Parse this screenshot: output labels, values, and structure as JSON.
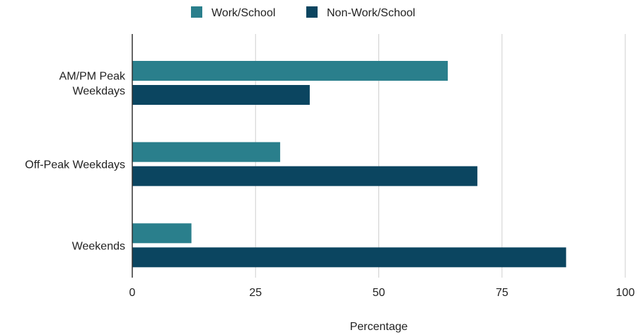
{
  "chart_data": {
    "type": "bar",
    "orientation": "horizontal",
    "categories": [
      [
        "AM/PM Peak",
        "Weekdays"
      ],
      [
        "Off-Peak Weekdays"
      ],
      [
        "Weekends"
      ]
    ],
    "series": [
      {
        "name": "Work/School",
        "color": "#2a7f8c",
        "values": [
          64,
          30,
          12
        ]
      },
      {
        "name": "Non-Work/School",
        "color": "#0b4560",
        "values": [
          36,
          70,
          88
        ]
      }
    ],
    "xlabel": "Percentage",
    "ylabel": "",
    "xlim": [
      0,
      100
    ],
    "xticks": [
      0,
      25,
      50,
      75,
      100
    ],
    "grid": "vertical",
    "legend_position": "top-center"
  }
}
